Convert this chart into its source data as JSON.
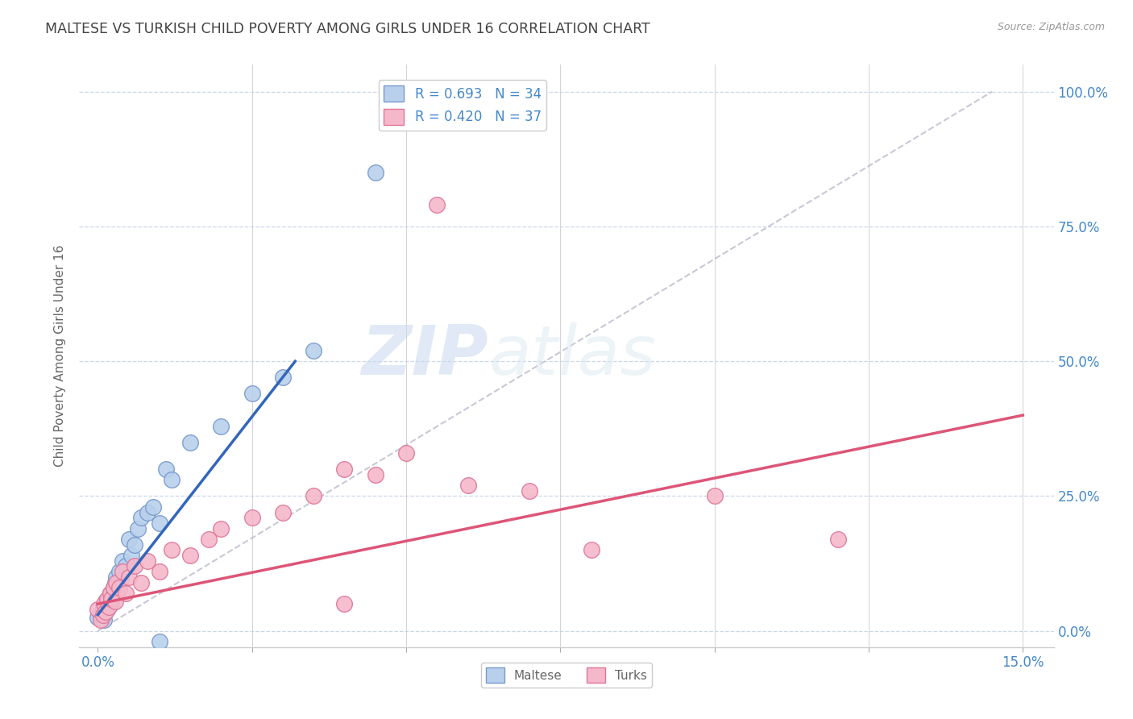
{
  "title": "MALTESE VS TURKISH CHILD POVERTY AMONG GIRLS UNDER 16 CORRELATION CHART",
  "source": "Source: ZipAtlas.com",
  "xlabel_ticks": [
    0.0,
    2.5,
    5.0,
    7.5,
    10.0,
    12.5,
    15.0
  ],
  "xlabel_labels": [
    "0.0%",
    "",
    "",
    "",
    "",
    "",
    "15.0%"
  ],
  "ylabel_ticks": [
    0.0,
    25.0,
    50.0,
    75.0,
    100.0
  ],
  "ylabel_labels": [
    "0.0%",
    "25.0%",
    "50.0%",
    "75.0%",
    "100.0%"
  ],
  "ylabel_label": "Child Poverty Among Girls Under 16",
  "xlim": [
    -0.3,
    15.5
  ],
  "ylim": [
    -3.0,
    105.0
  ],
  "maltese_color": "#b8d0eb",
  "turks_color": "#f5b8ca",
  "maltese_edge": "#7799cc",
  "turks_edge": "#dd7799",
  "maltese_line_color": "#3366bb",
  "turks_line_color": "#dd5577",
  "ref_line_color": "#bbbbcc",
  "legend_R_maltese": "R = 0.693",
  "legend_N_maltese": "N = 34",
  "legend_R_turks": "R = 0.420",
  "legend_N_turks": "N = 37",
  "watermark_zip": "ZIP",
  "watermark_atlas": "atlas",
  "maltese_scatter": [
    [
      0.0,
      2.5
    ],
    [
      0.05,
      3.0
    ],
    [
      0.08,
      4.5
    ],
    [
      0.1,
      2.0
    ],
    [
      0.12,
      5.5
    ],
    [
      0.15,
      4.0
    ],
    [
      0.18,
      6.0
    ],
    [
      0.2,
      7.0
    ],
    [
      0.22,
      5.0
    ],
    [
      0.25,
      8.0
    ],
    [
      0.28,
      9.0
    ],
    [
      0.3,
      10.0
    ],
    [
      0.32,
      7.5
    ],
    [
      0.35,
      11.0
    ],
    [
      0.38,
      9.5
    ],
    [
      0.4,
      13.0
    ],
    [
      0.45,
      12.0
    ],
    [
      0.5,
      17.0
    ],
    [
      0.55,
      14.0
    ],
    [
      0.6,
      16.0
    ],
    [
      0.65,
      19.0
    ],
    [
      0.7,
      21.0
    ],
    [
      0.8,
      22.0
    ],
    [
      0.9,
      23.0
    ],
    [
      1.0,
      20.0
    ],
    [
      1.1,
      30.0
    ],
    [
      1.2,
      28.0
    ],
    [
      1.5,
      35.0
    ],
    [
      2.0,
      38.0
    ],
    [
      2.5,
      44.0
    ],
    [
      3.0,
      47.0
    ],
    [
      3.5,
      52.0
    ],
    [
      4.5,
      85.0
    ],
    [
      1.0,
      -2.0
    ]
  ],
  "turks_scatter": [
    [
      0.0,
      4.0
    ],
    [
      0.05,
      2.0
    ],
    [
      0.08,
      3.0
    ],
    [
      0.1,
      5.0
    ],
    [
      0.12,
      3.5
    ],
    [
      0.15,
      6.0
    ],
    [
      0.18,
      4.5
    ],
    [
      0.2,
      7.0
    ],
    [
      0.22,
      6.0
    ],
    [
      0.25,
      8.0
    ],
    [
      0.28,
      5.5
    ],
    [
      0.3,
      9.0
    ],
    [
      0.35,
      8.0
    ],
    [
      0.4,
      11.0
    ],
    [
      0.45,
      7.0
    ],
    [
      0.5,
      10.0
    ],
    [
      0.6,
      12.0
    ],
    [
      0.7,
      9.0
    ],
    [
      0.8,
      13.0
    ],
    [
      1.0,
      11.0
    ],
    [
      1.2,
      15.0
    ],
    [
      1.5,
      14.0
    ],
    [
      1.8,
      17.0
    ],
    [
      2.0,
      19.0
    ],
    [
      2.5,
      21.0
    ],
    [
      3.0,
      22.0
    ],
    [
      3.5,
      25.0
    ],
    [
      4.0,
      30.0
    ],
    [
      4.5,
      29.0
    ],
    [
      5.0,
      33.0
    ],
    [
      5.5,
      79.0
    ],
    [
      6.0,
      27.0
    ],
    [
      7.0,
      26.0
    ],
    [
      8.0,
      15.0
    ],
    [
      10.0,
      25.0
    ],
    [
      12.0,
      17.0
    ],
    [
      4.0,
      5.0
    ]
  ],
  "maltese_line_x": [
    0.0,
    3.2
  ],
  "maltese_line_y": [
    3.0,
    50.0
  ],
  "turks_line_x": [
    0.0,
    15.0
  ],
  "turks_line_y": [
    5.0,
    40.0
  ],
  "ref_line_x": [
    0.0,
    14.5
  ],
  "ref_line_y": [
    0.0,
    100.0
  ],
  "background_color": "#ffffff",
  "grid_color": "#ccd6e8",
  "title_color": "#444444",
  "axis_label_color": "#666666",
  "tick_label_color": "#4488cc",
  "source_color": "#999999"
}
